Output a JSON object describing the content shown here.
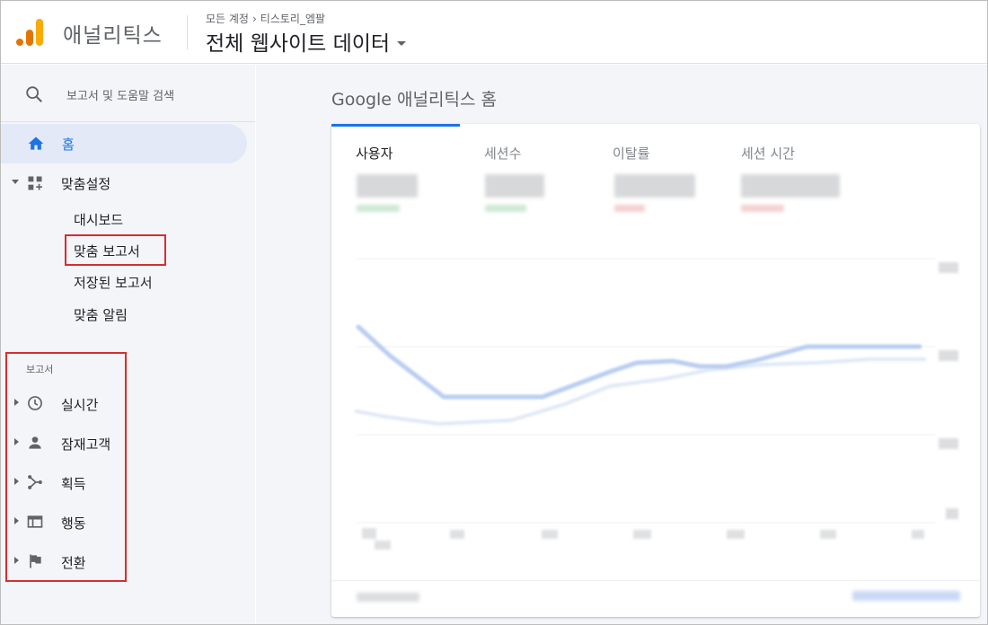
{
  "header": {
    "app_name": "애널리틱스",
    "breadcrumb_root": "모든 계정",
    "breadcrumb_sep": "›",
    "breadcrumb_account": "티스토리_엠팔",
    "view_title": "전체 웹사이트 데이터",
    "logo_colors": [
      "#f9ab00",
      "#e37400",
      "#e37400"
    ]
  },
  "sidebar": {
    "search_placeholder": "보고서 및 도움말 검색",
    "home_label": "홈",
    "custom_label": "맞춤설정",
    "custom_items": [
      "대시보드",
      "맞춤 보고서",
      "저장된 보고서",
      "맞춤 알림"
    ],
    "reports_section": "보고서",
    "reports": [
      {
        "label": "실시간",
        "icon": "clock-icon"
      },
      {
        "label": "잠재고객",
        "icon": "person-icon"
      },
      {
        "label": "획득",
        "icon": "acquisition-icon"
      },
      {
        "label": "행동",
        "icon": "behavior-icon"
      },
      {
        "label": "전환",
        "icon": "flag-icon"
      }
    ]
  },
  "main": {
    "title": "Google 애널리틱스 홈",
    "metrics": [
      "사용자",
      "세션수",
      "이탈률",
      "세션 시간"
    ]
  },
  "colors": {
    "accent": "#1a73e8",
    "highlight_box": "#d32f2f",
    "home_bg": "#e3e9f7"
  }
}
